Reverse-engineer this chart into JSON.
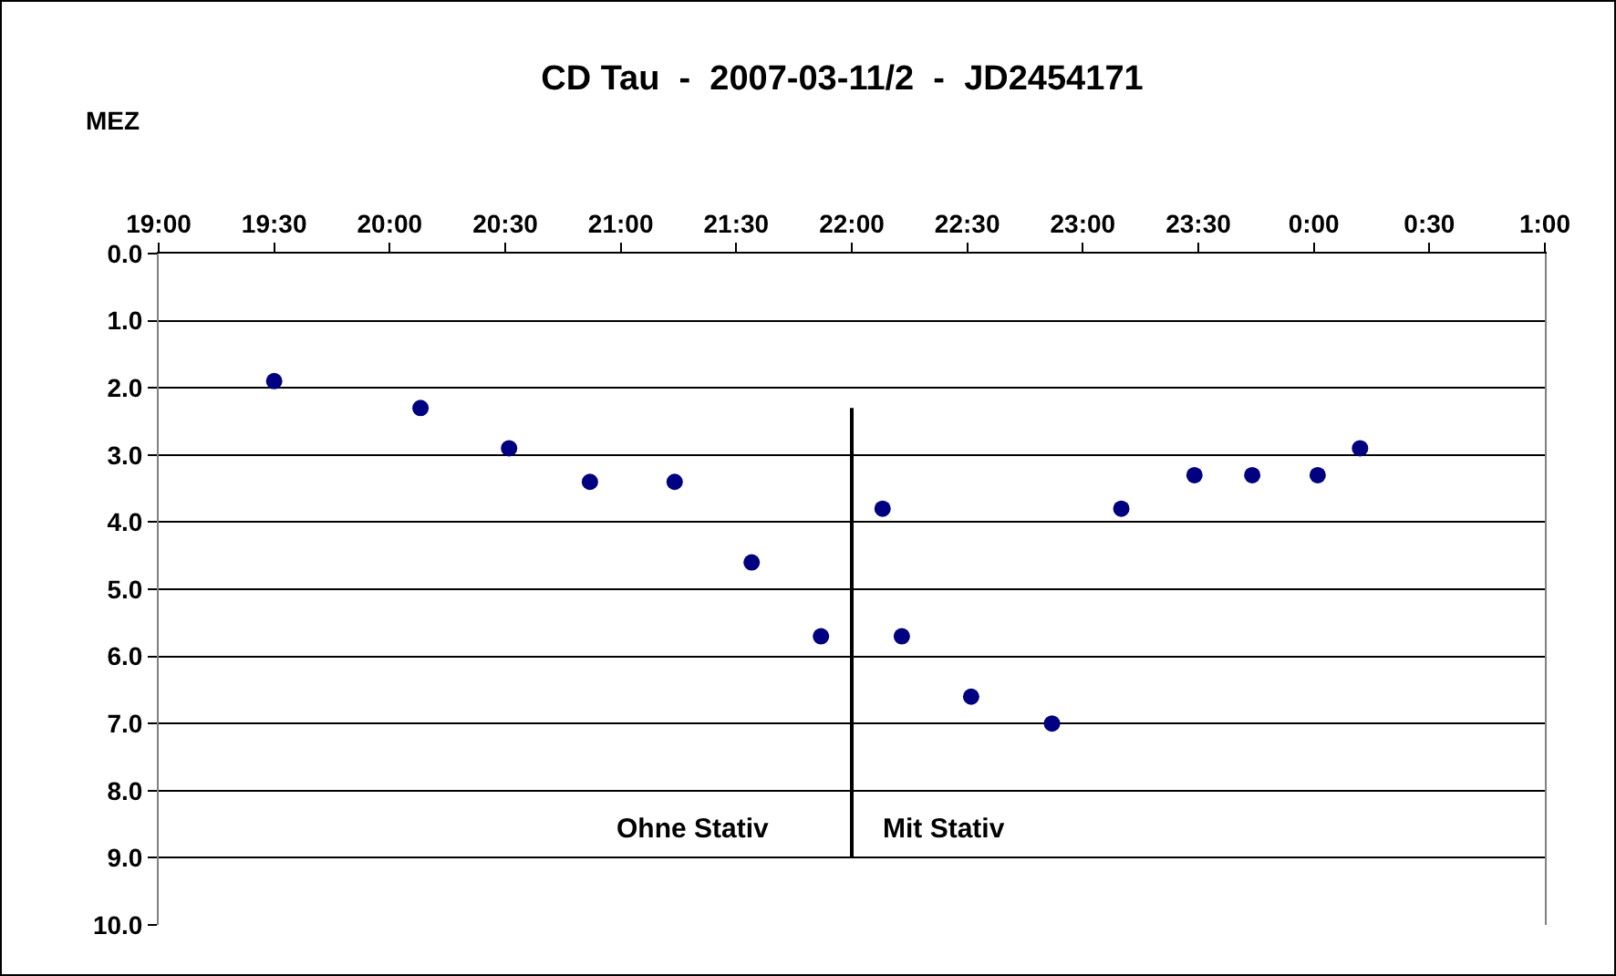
{
  "chart_data": {
    "type": "scatter",
    "title": "CD Tau  -  2007-03-11/2  -  JD2454171",
    "xlabel": "MEZ",
    "x": [
      "2007-03-11T19:30",
      "2007-03-11T20:08",
      "2007-03-11T20:31",
      "2007-03-11T20:52",
      "2007-03-11T21:14",
      "2007-03-11T21:34",
      "2007-03-11T21:52",
      "2007-03-11T22:08",
      "2007-03-11T22:13",
      "2007-03-11T22:31",
      "2007-03-11T22:52",
      "2007-03-11T23:10",
      "2007-03-11T23:29",
      "2007-03-11T23:44",
      "2007-03-12T00:01",
      "2007-03-12T00:12"
    ],
    "series": [
      {
        "color": "#000080",
        "values": [
          1.9,
          2.3,
          2.9,
          3.4,
          3.4,
          4.6,
          5.7,
          3.8,
          5.7,
          6.6,
          7.0,
          3.8,
          3.3,
          3.3,
          3.3,
          2.9
        ]
      },
      {
        "type": "line",
        "color": "#000000",
        "x": [
          "2007-03-11T22:00",
          "2007-03-11T22:00"
        ],
        "values": [
          2.3,
          9.0
        ],
        "marker": "none"
      }
    ],
    "marker": "circle",
    "xlim": [
      "2007-03-11T19:00",
      "2007-03-12T01:00"
    ],
    "xticks": [
      {
        "value": "2007-03-11T19:00",
        "label": "19:00"
      },
      {
        "value": "2007-03-11T19:30",
        "label": "19:30"
      },
      {
        "value": "2007-03-11T20:00",
        "label": "20:00"
      },
      {
        "value": "2007-03-11T20:30",
        "label": "20:30"
      },
      {
        "value": "2007-03-11T21:00",
        "label": "21:00"
      },
      {
        "value": "2007-03-11T21:30",
        "label": "21:30"
      },
      {
        "value": "2007-03-11T22:00",
        "label": "22:00"
      },
      {
        "value": "2007-03-11T22:30",
        "label": "22:30"
      },
      {
        "value": "2007-03-11T23:00",
        "label": "23:00"
      },
      {
        "value": "2007-03-11T23:30",
        "label": "23:30"
      },
      {
        "value": "2007-03-12T00:00",
        "label": "0:00"
      },
      {
        "value": "2007-03-12T00:30",
        "label": "0:30"
      },
      {
        "value": "2007-03-12T01:00",
        "label": "1:00"
      }
    ],
    "ylim": [
      10,
      0
    ],
    "yticks": [
      {
        "value": 0,
        "label": "0.0"
      },
      {
        "value": 1,
        "label": "1.0"
      },
      {
        "value": 2,
        "label": "2.0"
      },
      {
        "value": 3,
        "label": "3.0"
      },
      {
        "value": 4,
        "label": "4.0"
      },
      {
        "value": 5,
        "label": "5.0"
      },
      {
        "value": 6,
        "label": "6.0"
      },
      {
        "value": 7,
        "label": "7.0"
      },
      {
        "value": 8,
        "label": "8.0"
      },
      {
        "value": 9,
        "label": "9.0"
      },
      {
        "value": 10,
        "label": "10.0"
      }
    ],
    "grid": "y",
    "annotations": [
      "Ohne Stativ",
      "Mit Stativ"
    ]
  }
}
